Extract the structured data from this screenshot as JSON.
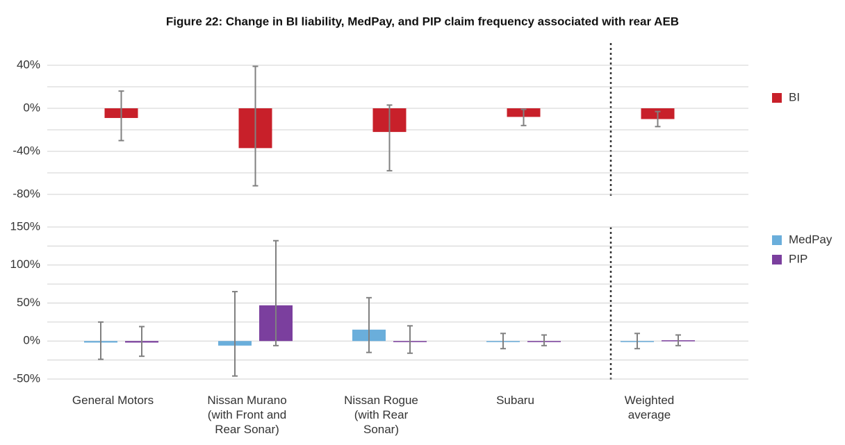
{
  "chart_data": [
    {
      "type": "bar",
      "title": "Figure 22: Change in BI liability, MedPay, and PIP claim frequency associated with rear AEB",
      "series": [
        {
          "name": "BI",
          "color": "#c8202a",
          "values": [
            -9,
            -37,
            -22,
            -8,
            -10
          ],
          "lower": [
            -30,
            -72,
            -58,
            -16,
            -17
          ],
          "upper": [
            16,
            39,
            3,
            -1,
            -3
          ]
        }
      ],
      "ylim": [
        -80,
        40
      ],
      "yticks": [
        {
          "value": -80,
          "label": "-80%"
        },
        {
          "value": -40,
          "label": "-40%"
        },
        {
          "value": 0,
          "label": "0%"
        },
        {
          "value": 40,
          "label": "40%"
        }
      ],
      "minor_yticks": [
        -60,
        -20,
        20
      ],
      "grid": true,
      "legend": "right"
    },
    {
      "type": "bar",
      "categories": [
        "General Motors",
        "Nissan Murano (with Front and Rear Sonar)",
        "Nissan Rogue (with Rear Sonar)",
        "Subaru",
        "Weighted average"
      ],
      "series": [
        {
          "name": "MedPay",
          "color": "#6aaedb",
          "values": [
            -2,
            -6,
            15,
            0,
            0
          ],
          "lower": [
            -24,
            -46,
            -15,
            -10,
            -10
          ],
          "upper": [
            25,
            65,
            57,
            10,
            10
          ]
        },
        {
          "name": "PIP",
          "color": "#7b3f9e",
          "values": [
            -2,
            47,
            -1,
            -1,
            1
          ],
          "lower": [
            -20,
            -6,
            -16,
            -6,
            -6
          ],
          "upper": [
            19,
            132,
            20,
            8,
            8
          ]
        }
      ],
      "ylim": [
        -50,
        150
      ],
      "yticks": [
        {
          "value": -50,
          "label": "-50%"
        },
        {
          "value": 0,
          "label": "0%"
        },
        {
          "value": 50,
          "label": "50%"
        },
        {
          "value": 100,
          "label": "100%"
        },
        {
          "value": 150,
          "label": "150%"
        }
      ],
      "minor_yticks": [
        -25,
        25,
        75,
        125
      ],
      "grid": true,
      "legend": "right"
    }
  ]
}
